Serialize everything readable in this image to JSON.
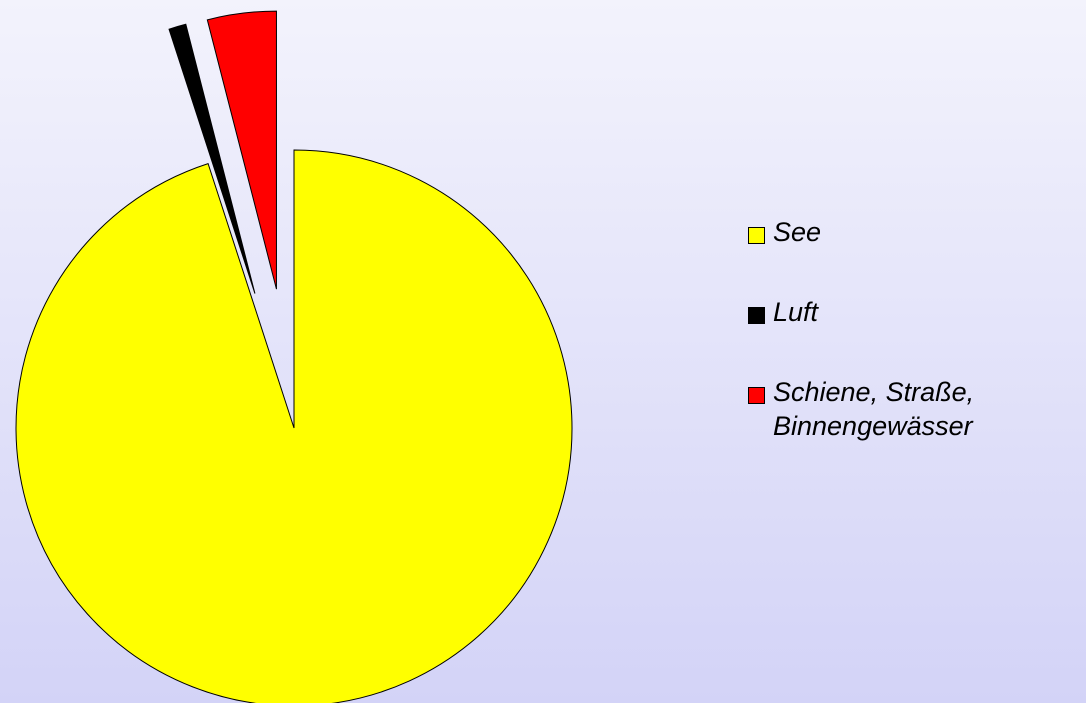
{
  "chart_data": {
    "type": "pie",
    "categories": [
      "See",
      "Luft",
      "Schiene, Straße, Binnengewässer"
    ],
    "values": [
      95,
      1,
      4
    ],
    "colors": [
      "#ffff00",
      "#000000",
      "#ff0000"
    ],
    "legend": "right"
  }
}
